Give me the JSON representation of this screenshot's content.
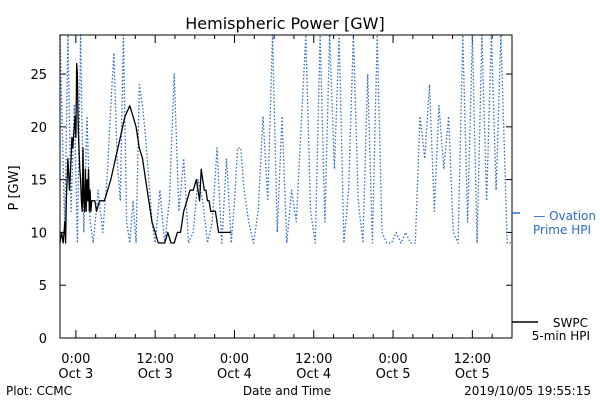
{
  "chart_data": {
    "type": "line",
    "title": "Hemispheric Power [GW]",
    "ylabel": "P [GW]",
    "xlabel": "Date and Time",
    "ylim": [
      0,
      28.7
    ],
    "xlim": [
      -0.1,
      2.75
    ],
    "yticks": [
      0,
      5,
      10,
      15,
      20,
      25
    ],
    "xticks": [
      {
        "x": 0.0,
        "line1": "0:00",
        "line2": "Oct 3"
      },
      {
        "x": 0.5,
        "line1": "12:00",
        "line2": "Oct 3"
      },
      {
        "x": 1.0,
        "line1": "0:00",
        "line2": "Oct 4"
      },
      {
        "x": 1.5,
        "line1": "12:00",
        "line2": "Oct 4"
      },
      {
        "x": 2.0,
        "line1": "0:00",
        "line2": "Oct 5"
      },
      {
        "x": 2.5,
        "line1": "12:00",
        "line2": "Oct 5"
      }
    ],
    "grid": false,
    "series": [
      {
        "name": "SWPC 5-min HPI",
        "color": "#000000",
        "style": "solid",
        "x": [
          -0.1,
          -0.09,
          -0.08,
          -0.07,
          -0.065,
          -0.06,
          -0.05,
          -0.04,
          -0.03,
          -0.025,
          -0.02,
          -0.015,
          -0.01,
          -0.005,
          0.0,
          0.005,
          0.01,
          0.015,
          0.02,
          0.025,
          0.03,
          0.035,
          0.04,
          0.045,
          0.05,
          0.055,
          0.06,
          0.065,
          0.07,
          0.075,
          0.08,
          0.085,
          0.09,
          0.095,
          0.1,
          0.11,
          0.12,
          0.13,
          0.15,
          0.18,
          0.2,
          0.22,
          0.25,
          0.28,
          0.31,
          0.34,
          0.36,
          0.38,
          0.4,
          0.42,
          0.44,
          0.46,
          0.47,
          0.48,
          0.5,
          0.52,
          0.54,
          0.56,
          0.58,
          0.6,
          0.62,
          0.64,
          0.66,
          0.68,
          0.7,
          0.72,
          0.74,
          0.76,
          0.78,
          0.79,
          0.8,
          0.81,
          0.82,
          0.83,
          0.84,
          0.85,
          0.86,
          0.87,
          0.88,
          0.89,
          0.9,
          0.92,
          0.94,
          0.96,
          0.98
        ],
        "y": [
          9,
          10,
          9,
          11,
          9,
          13,
          17,
          14,
          17,
          19,
          18,
          19,
          20,
          21,
          19,
          26,
          25,
          20,
          18,
          16,
          15,
          13,
          12,
          18,
          13,
          12,
          16,
          12,
          15,
          13,
          16,
          12,
          14,
          12,
          13,
          13,
          13,
          12,
          13,
          13,
          14,
          15,
          17,
          19,
          21,
          22,
          21,
          20,
          18,
          17,
          15,
          13,
          12,
          11,
          10,
          9,
          9,
          9,
          10,
          9,
          9,
          10,
          10,
          12,
          13,
          14,
          14,
          15,
          13,
          16,
          15,
          14,
          14,
          13,
          13,
          12,
          12,
          12,
          12,
          11,
          10,
          10,
          10,
          10,
          10
        ]
      },
      {
        "name": "Ovation Prime HPI",
        "color": "#2b6cc9",
        "style": "dotted",
        "x": [
          -0.1,
          -0.07,
          -0.05,
          -0.03,
          -0.01,
          0.01,
          0.03,
          0.05,
          0.07,
          0.09,
          0.11,
          0.14,
          0.17,
          0.2,
          0.22,
          0.24,
          0.26,
          0.28,
          0.3,
          0.32,
          0.34,
          0.36,
          0.38,
          0.4,
          0.42,
          0.44,
          0.46,
          0.48,
          0.5,
          0.53,
          0.56,
          0.59,
          0.62,
          0.65,
          0.68,
          0.71,
          0.74,
          0.77,
          0.8,
          0.83,
          0.86,
          0.89,
          0.92,
          0.95,
          0.98,
          1.0,
          1.02,
          1.04,
          1.06,
          1.09,
          1.12,
          1.15,
          1.18,
          1.21,
          1.24,
          1.27,
          1.3,
          1.33,
          1.36,
          1.39,
          1.42,
          1.45,
          1.48,
          1.51,
          1.54,
          1.57,
          1.6,
          1.63,
          1.66,
          1.69,
          1.72,
          1.75,
          1.78,
          1.81,
          1.84,
          1.87,
          1.9,
          1.93,
          1.96,
          1.99,
          2.02,
          2.05,
          2.08,
          2.11,
          2.14,
          2.17,
          2.2,
          2.23,
          2.26,
          2.29,
          2.32,
          2.35,
          2.38,
          2.41,
          2.44,
          2.47,
          2.5,
          2.53,
          2.56,
          2.59,
          2.62,
          2.65,
          2.68,
          2.72,
          2.75
        ],
        "y": [
          28.7,
          10,
          28.7,
          12,
          22,
          9,
          28.7,
          10,
          21,
          11,
          9,
          14,
          10,
          16,
          22,
          27,
          17,
          13,
          28.7,
          11,
          9,
          13,
          9,
          24,
          22,
          19,
          15,
          11,
          9,
          14,
          9,
          13,
          25,
          12,
          17,
          9,
          10,
          15,
          13,
          9,
          11,
          18,
          9,
          17,
          9,
          13,
          18,
          18,
          14,
          11,
          9,
          12,
          21,
          13,
          28.7,
          10,
          21,
          9,
          14,
          11,
          20,
          28.7,
          12,
          9,
          28.7,
          11,
          28.7,
          16,
          28.7,
          9,
          14,
          28.7,
          13,
          9,
          25,
          9,
          28.7,
          10,
          9,
          9,
          10,
          9,
          10,
          9,
          9,
          21,
          17,
          24,
          12,
          22,
          16,
          21,
          10,
          9,
          28.7,
          11,
          28.7,
          9,
          28.7,
          13,
          28.7,
          14,
          28.7,
          9,
          9
        ]
      }
    ],
    "legend": [
      {
        "series": "Ovation Prime HPI",
        "line1": "— Ovation",
        "line2": "Prime HPI",
        "color": "#2b6cc9",
        "placement": "right"
      },
      {
        "series": "SWPC 5-min HPI",
        "line1": "SWPC",
        "line2": "5-min HPI",
        "color": "#000000",
        "placement": "bottom-right"
      }
    ]
  },
  "footer": {
    "left": "Plot: CCMC",
    "center": "Date and Time",
    "right": "2019/10/05 19:55:15"
  }
}
